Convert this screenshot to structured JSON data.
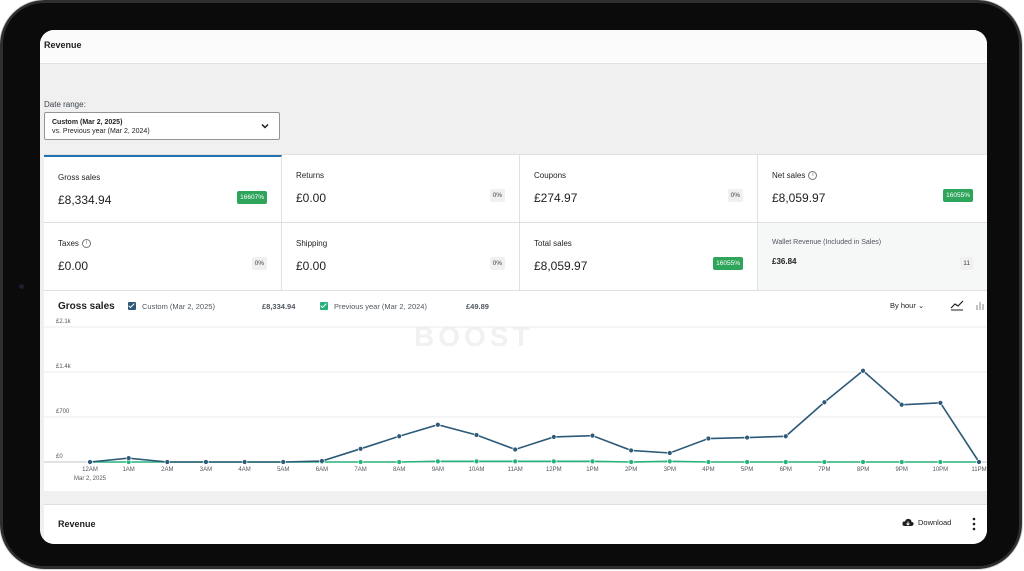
{
  "page": {
    "title": "Revenue"
  },
  "date_range": {
    "label": "Date range:",
    "primary": "Custom (Mar 2, 2025)",
    "comparison": "vs. Previous year (Mar 2, 2024)"
  },
  "cards": [
    {
      "label": "Gross sales",
      "value": "£8,334.94",
      "delta": "16607%",
      "delta_color": "green",
      "info": false,
      "selected": true
    },
    {
      "label": "Returns",
      "value": "£0.00",
      "delta": "0%",
      "delta_color": "gray",
      "info": false
    },
    {
      "label": "Coupons",
      "value": "£274.97",
      "delta": "0%",
      "delta_color": "gray",
      "info": false
    },
    {
      "label": "Net sales",
      "value": "£8,059.97",
      "delta": "16055%",
      "delta_color": "green",
      "info": true
    },
    {
      "label": "Taxes",
      "value": "£0.00",
      "delta": "0%",
      "delta_color": "gray",
      "info": true
    },
    {
      "label": "Shipping",
      "value": "£0.00",
      "delta": "0%",
      "delta_color": "gray",
      "info": false
    },
    {
      "label": "Total sales",
      "value": "£8,059.97",
      "delta": "16055%",
      "delta_color": "green",
      "info": false
    },
    {
      "label": "Wallet Revenue (Included in Sales)",
      "value": "£36.84",
      "delta": "11",
      "delta_color": "gray",
      "info": false
    }
  ],
  "chart": {
    "title": "Gross sales",
    "legend": [
      {
        "label": "Custom (Mar 2, 2025)",
        "total": "£8,334.94",
        "color": "#2c5a78"
      },
      {
        "label": "Previous year (Mar 2, 2024)",
        "total": "£49.89",
        "color": "#26b27b"
      }
    ],
    "interval": "By hour",
    "watermark": "BOOST",
    "x_sublabel": "Mar 2, 2025"
  },
  "chart_data": {
    "type": "line",
    "title": "Gross sales",
    "x": [
      "12AM",
      "1AM",
      "2AM",
      "3AM",
      "4AM",
      "5AM",
      "6AM",
      "7AM",
      "8AM",
      "9AM",
      "10AM",
      "11AM",
      "12PM",
      "1PM",
      "2PM",
      "3PM",
      "4PM",
      "5PM",
      "6PM",
      "7PM",
      "8PM",
      "9PM",
      "10PM",
      "11PM"
    ],
    "series": [
      {
        "name": "Custom (Mar 2, 2025)",
        "color": "#2c5a78",
        "values": [
          0,
          60,
          0,
          0,
          0,
          0,
          15,
          205,
          400,
          580,
          420,
          195,
          390,
          410,
          180,
          140,
          365,
          380,
          400,
          930,
          1420,
          890,
          920,
          0
        ]
      },
      {
        "name": "Previous year (Mar 2, 2024)",
        "color": "#26b27b",
        "values": [
          0,
          0,
          0,
          0,
          0,
          0,
          0,
          0,
          0,
          10,
          10,
          10,
          10,
          10,
          0,
          10,
          0,
          0,
          0,
          0,
          0,
          0,
          0,
          0
        ]
      }
    ],
    "yticks": [
      0,
      700,
      1400,
      2100
    ],
    "ytick_labels": [
      "£0",
      "£700",
      "£1.4k",
      "£2.1k"
    ],
    "ylim": [
      0,
      2100
    ],
    "grid": true
  },
  "revenue_panel": {
    "title": "Revenue",
    "download_label": "Download"
  }
}
